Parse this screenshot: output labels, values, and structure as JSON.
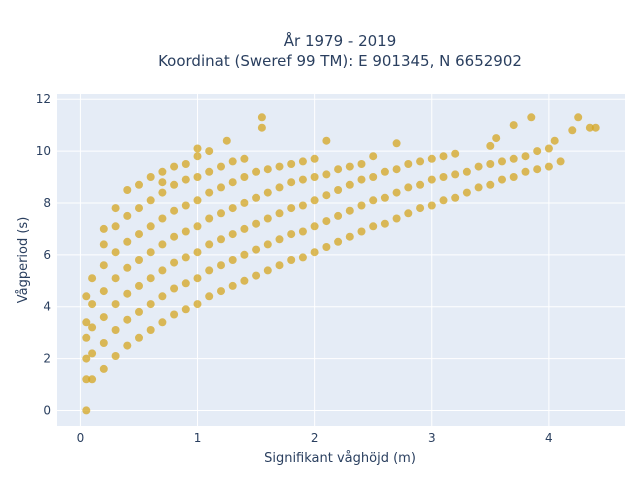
{
  "chart_data": {
    "type": "scatter",
    "title_lines": [
      "År 1979 - 2019",
      "Koordinat (Sweref 99 TM): E 901345, N 6652902"
    ],
    "xlabel": "Signifikant våghöjd (m)",
    "ylabel": "Vågperiod (s)",
    "xlim": [
      -0.2,
      4.65
    ],
    "ylim": [
      -0.6,
      12.2
    ],
    "x_ticks": [
      0,
      1,
      2,
      3,
      4
    ],
    "y_ticks": [
      0,
      2,
      4,
      6,
      8,
      10,
      12
    ],
    "grid": true,
    "background_color": "#e5ecf6",
    "grid_color": "#ffffff",
    "marker_color": "#d4a520",
    "series": [
      {
        "points": [
          [
            0.05,
            0.0
          ],
          [
            0.05,
            1.2
          ],
          [
            0.05,
            2.0
          ],
          [
            0.05,
            2.8
          ],
          [
            0.05,
            3.4
          ],
          [
            0.05,
            4.4
          ],
          [
            0.1,
            1.2
          ],
          [
            0.1,
            2.2
          ],
          [
            0.1,
            3.2
          ],
          [
            0.1,
            4.1
          ],
          [
            0.1,
            5.1
          ],
          [
            0.2,
            1.6
          ],
          [
            0.2,
            2.6
          ],
          [
            0.2,
            3.6
          ],
          [
            0.2,
            4.6
          ],
          [
            0.2,
            5.6
          ],
          [
            0.2,
            6.4
          ],
          [
            0.2,
            7.0
          ],
          [
            0.3,
            2.1
          ],
          [
            0.3,
            3.1
          ],
          [
            0.3,
            4.1
          ],
          [
            0.3,
            5.1
          ],
          [
            0.3,
            6.1
          ],
          [
            0.3,
            7.1
          ],
          [
            0.3,
            7.8
          ],
          [
            0.4,
            2.5
          ],
          [
            0.4,
            3.5
          ],
          [
            0.4,
            4.5
          ],
          [
            0.4,
            5.5
          ],
          [
            0.4,
            6.5
          ],
          [
            0.4,
            7.5
          ],
          [
            0.4,
            8.5
          ],
          [
            0.5,
            2.8
          ],
          [
            0.5,
            3.8
          ],
          [
            0.5,
            4.8
          ],
          [
            0.5,
            5.8
          ],
          [
            0.5,
            6.8
          ],
          [
            0.5,
            7.8
          ],
          [
            0.5,
            8.7
          ],
          [
            0.6,
            3.1
          ],
          [
            0.6,
            4.1
          ],
          [
            0.6,
            5.1
          ],
          [
            0.6,
            6.1
          ],
          [
            0.6,
            7.1
          ],
          [
            0.6,
            8.1
          ],
          [
            0.6,
            9.0
          ],
          [
            0.7,
            3.4
          ],
          [
            0.7,
            4.4
          ],
          [
            0.7,
            5.4
          ],
          [
            0.7,
            6.4
          ],
          [
            0.7,
            7.4
          ],
          [
            0.7,
            8.4
          ],
          [
            0.7,
            9.2
          ],
          [
            0.8,
            3.7
          ],
          [
            0.8,
            4.7
          ],
          [
            0.8,
            5.7
          ],
          [
            0.8,
            6.7
          ],
          [
            0.8,
            7.7
          ],
          [
            0.8,
            8.7
          ],
          [
            0.8,
            9.4
          ],
          [
            0.9,
            3.9
          ],
          [
            0.9,
            4.9
          ],
          [
            0.9,
            5.9
          ],
          [
            0.9,
            6.9
          ],
          [
            0.9,
            7.9
          ],
          [
            0.9,
            8.9
          ],
          [
            0.9,
            9.5
          ],
          [
            1.0,
            4.1
          ],
          [
            1.0,
            5.1
          ],
          [
            1.0,
            6.1
          ],
          [
            1.0,
            7.1
          ],
          [
            1.0,
            8.1
          ],
          [
            1.0,
            9.0
          ],
          [
            1.0,
            9.8
          ],
          [
            1.1,
            4.4
          ],
          [
            1.1,
            5.4
          ],
          [
            1.1,
            6.4
          ],
          [
            1.1,
            7.4
          ],
          [
            1.1,
            8.4
          ],
          [
            1.1,
            9.2
          ],
          [
            1.1,
            10.0
          ],
          [
            1.2,
            4.6
          ],
          [
            1.2,
            5.6
          ],
          [
            1.2,
            6.6
          ],
          [
            1.2,
            7.6
          ],
          [
            1.2,
            8.6
          ],
          [
            1.2,
            9.4
          ],
          [
            1.3,
            4.8
          ],
          [
            1.3,
            5.8
          ],
          [
            1.3,
            6.8
          ],
          [
            1.3,
            7.8
          ],
          [
            1.3,
            8.8
          ],
          [
            1.3,
            9.6
          ],
          [
            1.4,
            5.0
          ],
          [
            1.4,
            6.0
          ],
          [
            1.4,
            7.0
          ],
          [
            1.4,
            8.0
          ],
          [
            1.4,
            9.0
          ],
          [
            1.4,
            9.7
          ],
          [
            1.5,
            5.2
          ],
          [
            1.5,
            6.2
          ],
          [
            1.5,
            7.2
          ],
          [
            1.5,
            8.2
          ],
          [
            1.5,
            9.2
          ],
          [
            1.6,
            5.4
          ],
          [
            1.6,
            6.4
          ],
          [
            1.6,
            7.4
          ],
          [
            1.6,
            8.4
          ],
          [
            1.6,
            9.3
          ],
          [
            1.7,
            5.6
          ],
          [
            1.7,
            6.6
          ],
          [
            1.7,
            7.6
          ],
          [
            1.7,
            8.6
          ],
          [
            1.7,
            9.4
          ],
          [
            1.8,
            5.8
          ],
          [
            1.8,
            6.8
          ],
          [
            1.8,
            7.8
          ],
          [
            1.8,
            8.8
          ],
          [
            1.8,
            9.5
          ],
          [
            1.9,
            5.9
          ],
          [
            1.9,
            6.9
          ],
          [
            1.9,
            7.9
          ],
          [
            1.9,
            8.9
          ],
          [
            1.9,
            9.6
          ],
          [
            2.0,
            6.1
          ],
          [
            2.0,
            7.1
          ],
          [
            2.0,
            8.1
          ],
          [
            2.0,
            9.0
          ],
          [
            2.0,
            9.7
          ],
          [
            2.1,
            6.3
          ],
          [
            2.1,
            7.3
          ],
          [
            2.1,
            8.3
          ],
          [
            2.1,
            9.1
          ],
          [
            2.2,
            6.5
          ],
          [
            2.2,
            7.5
          ],
          [
            2.2,
            8.5
          ],
          [
            2.2,
            9.3
          ],
          [
            2.3,
            6.7
          ],
          [
            2.3,
            7.7
          ],
          [
            2.3,
            8.7
          ],
          [
            2.3,
            9.4
          ],
          [
            2.4,
            6.9
          ],
          [
            2.4,
            7.9
          ],
          [
            2.4,
            8.9
          ],
          [
            2.4,
            9.5
          ],
          [
            2.5,
            7.1
          ],
          [
            2.5,
            8.1
          ],
          [
            2.5,
            9.0
          ],
          [
            2.5,
            9.8
          ],
          [
            2.6,
            7.2
          ],
          [
            2.6,
            8.2
          ],
          [
            2.6,
            9.2
          ],
          [
            2.7,
            7.4
          ],
          [
            2.7,
            8.4
          ],
          [
            2.7,
            9.3
          ],
          [
            2.8,
            7.6
          ],
          [
            2.8,
            8.6
          ],
          [
            2.8,
            9.5
          ],
          [
            2.9,
            7.8
          ],
          [
            2.9,
            8.7
          ],
          [
            2.9,
            9.6
          ],
          [
            3.0,
            7.9
          ],
          [
            3.0,
            8.9
          ],
          [
            3.0,
            9.7
          ],
          [
            3.1,
            8.1
          ],
          [
            3.1,
            9.0
          ],
          [
            3.1,
            9.8
          ],
          [
            3.2,
            8.2
          ],
          [
            3.2,
            9.1
          ],
          [
            3.2,
            9.9
          ],
          [
            3.3,
            8.4
          ],
          [
            3.3,
            9.2
          ],
          [
            3.4,
            8.6
          ],
          [
            3.4,
            9.4
          ],
          [
            3.5,
            8.7
          ],
          [
            3.5,
            9.5
          ],
          [
            3.5,
            10.2
          ],
          [
            3.6,
            8.9
          ],
          [
            3.6,
            9.6
          ],
          [
            3.7,
            9.0
          ],
          [
            3.7,
            9.7
          ],
          [
            3.8,
            9.2
          ],
          [
            3.8,
            9.8
          ],
          [
            3.9,
            9.3
          ],
          [
            3.9,
            10.0
          ],
          [
            4.0,
            9.4
          ],
          [
            4.0,
            10.1
          ],
          [
            4.1,
            9.6
          ],
          [
            4.2,
            10.8
          ],
          [
            4.25,
            11.3
          ],
          [
            4.35,
            10.9
          ],
          [
            4.4,
            10.9
          ],
          [
            0.7,
            8.8
          ],
          [
            1.0,
            10.1
          ],
          [
            1.25,
            10.4
          ],
          [
            1.55,
            10.9
          ],
          [
            1.55,
            11.3
          ],
          [
            2.1,
            10.4
          ],
          [
            2.7,
            10.3
          ],
          [
            3.55,
            10.5
          ],
          [
            3.7,
            11.0
          ],
          [
            3.85,
            11.3
          ],
          [
            4.05,
            10.4
          ]
        ]
      }
    ]
  }
}
